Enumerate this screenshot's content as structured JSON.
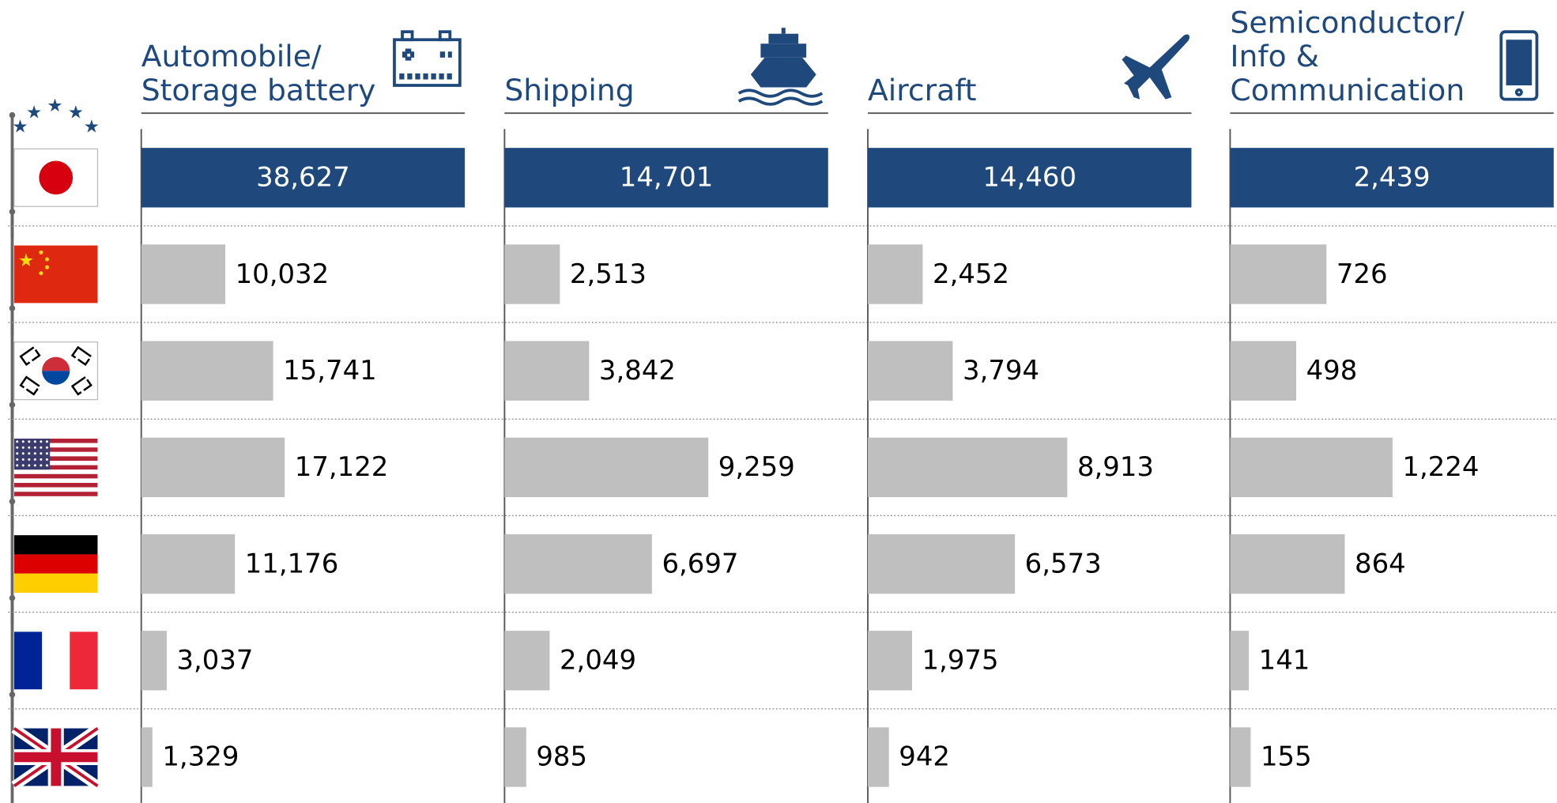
{
  "chart_data": [
    {
      "type": "bar",
      "orientation": "horizontal",
      "title": [
        "Automobile/",
        "Storage battery"
      ],
      "categories": [
        null,
        null,
        null,
        null,
        null,
        null,
        null
      ],
      "values": [
        38627,
        10032,
        15741,
        17122,
        11176,
        3037,
        1329
      ],
      "value_labels": [
        "38,627",
        "10,032",
        "15,741",
        "17,122",
        "11,176",
        "3,037",
        "1,329"
      ],
      "colors": [
        "#1f497d",
        "#bfbfbf",
        "#bfbfbf",
        "#bfbfbf",
        "#bfbfbf",
        "#bfbfbf",
        "#bfbfbf"
      ]
    },
    {
      "type": "bar",
      "orientation": "horizontal",
      "title": [
        "Shipping"
      ],
      "categories": [
        null,
        null,
        null,
        null,
        null,
        null,
        null
      ],
      "values": [
        14701,
        2513,
        3842,
        9259,
        6697,
        2049,
        985
      ],
      "value_labels": [
        "14,701",
        "2,513",
        "3,842",
        "9,259",
        "6,697",
        "2,049",
        "985"
      ],
      "colors": [
        "#1f497d",
        "#bfbfbf",
        "#bfbfbf",
        "#bfbfbf",
        "#bfbfbf",
        "#bfbfbf",
        "#bfbfbf"
      ]
    },
    {
      "type": "bar",
      "orientation": "horizontal",
      "title": [
        "Aircraft"
      ],
      "categories": [
        null,
        null,
        null,
        null,
        null,
        null,
        null
      ],
      "values": [
        14460,
        2452,
        3794,
        8913,
        6573,
        1975,
        942
      ],
      "value_labels": [
        "14,460",
        "2,452",
        "3,794",
        "8,913",
        "6,573",
        "1,975",
        "942"
      ],
      "colors": [
        "#1f497d",
        "#bfbfbf",
        "#bfbfbf",
        "#bfbfbf",
        "#bfbfbf",
        "#bfbfbf",
        "#bfbfbf"
      ]
    },
    {
      "type": "bar",
      "orientation": "horizontal",
      "title": [
        "Semiconductor/",
        "Info &",
        "Communication"
      ],
      "categories": [
        null,
        null,
        null,
        null,
        null,
        null,
        null
      ],
      "values": [
        2439,
        726,
        498,
        1224,
        864,
        141,
        155
      ],
      "value_labels": [
        "2,439",
        "726",
        "498",
        "1,224",
        "864",
        "141",
        "155"
      ],
      "colors": [
        "#1f497d",
        "#bfbfbf",
        "#bfbfbf",
        "#bfbfbf",
        "#bfbfbf",
        "#bfbfbf",
        "#bfbfbf"
      ]
    }
  ]
}
